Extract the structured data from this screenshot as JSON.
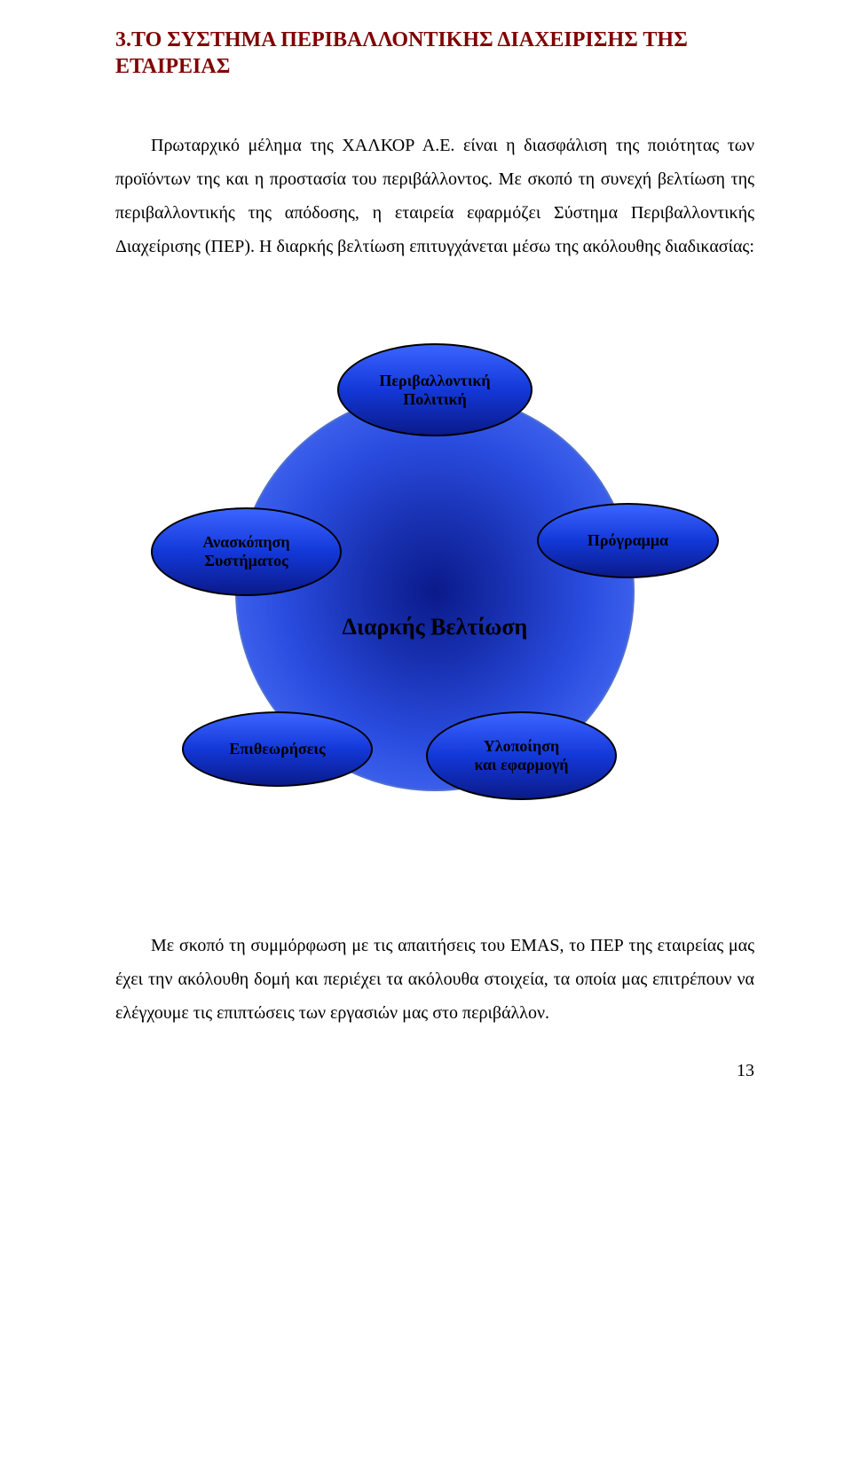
{
  "section": {
    "title_line1": "3.ΤΟ ΣΥΣΤΗΜΑ ΠΕΡΙΒΑΛΛΟΝΤΙΚΗΣ ΔΙΑΧΕΙΡΙΣΗΣ ΤΗΣ",
    "title_line2": "ΕΤΑΙΡΕΙΑΣ",
    "title_color": "#800000"
  },
  "para1": "Πρωταρχικό μέλημα της ΧΑΛΚΟΡ Α.Ε. είναι η διασφάλιση της ποιότητας των προϊόντων της και η προστασία του περιβάλλοντος. Με σκοπό τη συνεχή βελτίωση της περιβαλλοντικής της απόδοσης, η εταιρεία εφαρμόζει Σύστημα Περιβαλλοντικής Διαχείρισης (ΠΕΡ). Η διαρκής βελτίωση επιτυγχάνεται μέσω της ακόλουθης διαδικασίας:",
  "diagram": {
    "type": "cycle-infographic",
    "center_label": "Διαρκής Βελτίωση",
    "sphere_gradient": [
      "#0a1a8a",
      "#1830b0",
      "#2a4de0",
      "#5a80ff"
    ],
    "sphere_border": "#5070d0",
    "ellipse_gradient": [
      "#3b64ff",
      "#1338d8",
      "#0a1a8a"
    ],
    "ellipse_border": "#000000",
    "label_color": "#000000",
    "label_fontweight": "bold",
    "label_fontsize": 18,
    "center_fontsize": 26,
    "nodes": {
      "top": {
        "label_l1": "Περιβαλλοντική",
        "label_l2": "Πολιτική"
      },
      "left": {
        "label_l1": "Ανασκόπηση",
        "label_l2": "Συστήματος"
      },
      "right": {
        "label_l1": "Πρόγραμμα",
        "label_l2": ""
      },
      "bl": {
        "label_l1": "Επιθεωρήσεις",
        "label_l2": ""
      },
      "br": {
        "label_l1": "Υλοποίηση",
        "label_l2": "και εφαρμογή"
      }
    }
  },
  "para2": "Με σκοπό τη συμμόρφωση με τις απαιτήσεις του EMAS, το ΠΕΡ της εταιρείας μας έχει την ακόλουθη δομή και περιέχει τα ακόλουθα στοιχεία, τα οποία μας επιτρέπουν να ελέγχουμε τις επιπτώσεις των εργασιών μας στο περιβάλλον.",
  "page_number": "13"
}
